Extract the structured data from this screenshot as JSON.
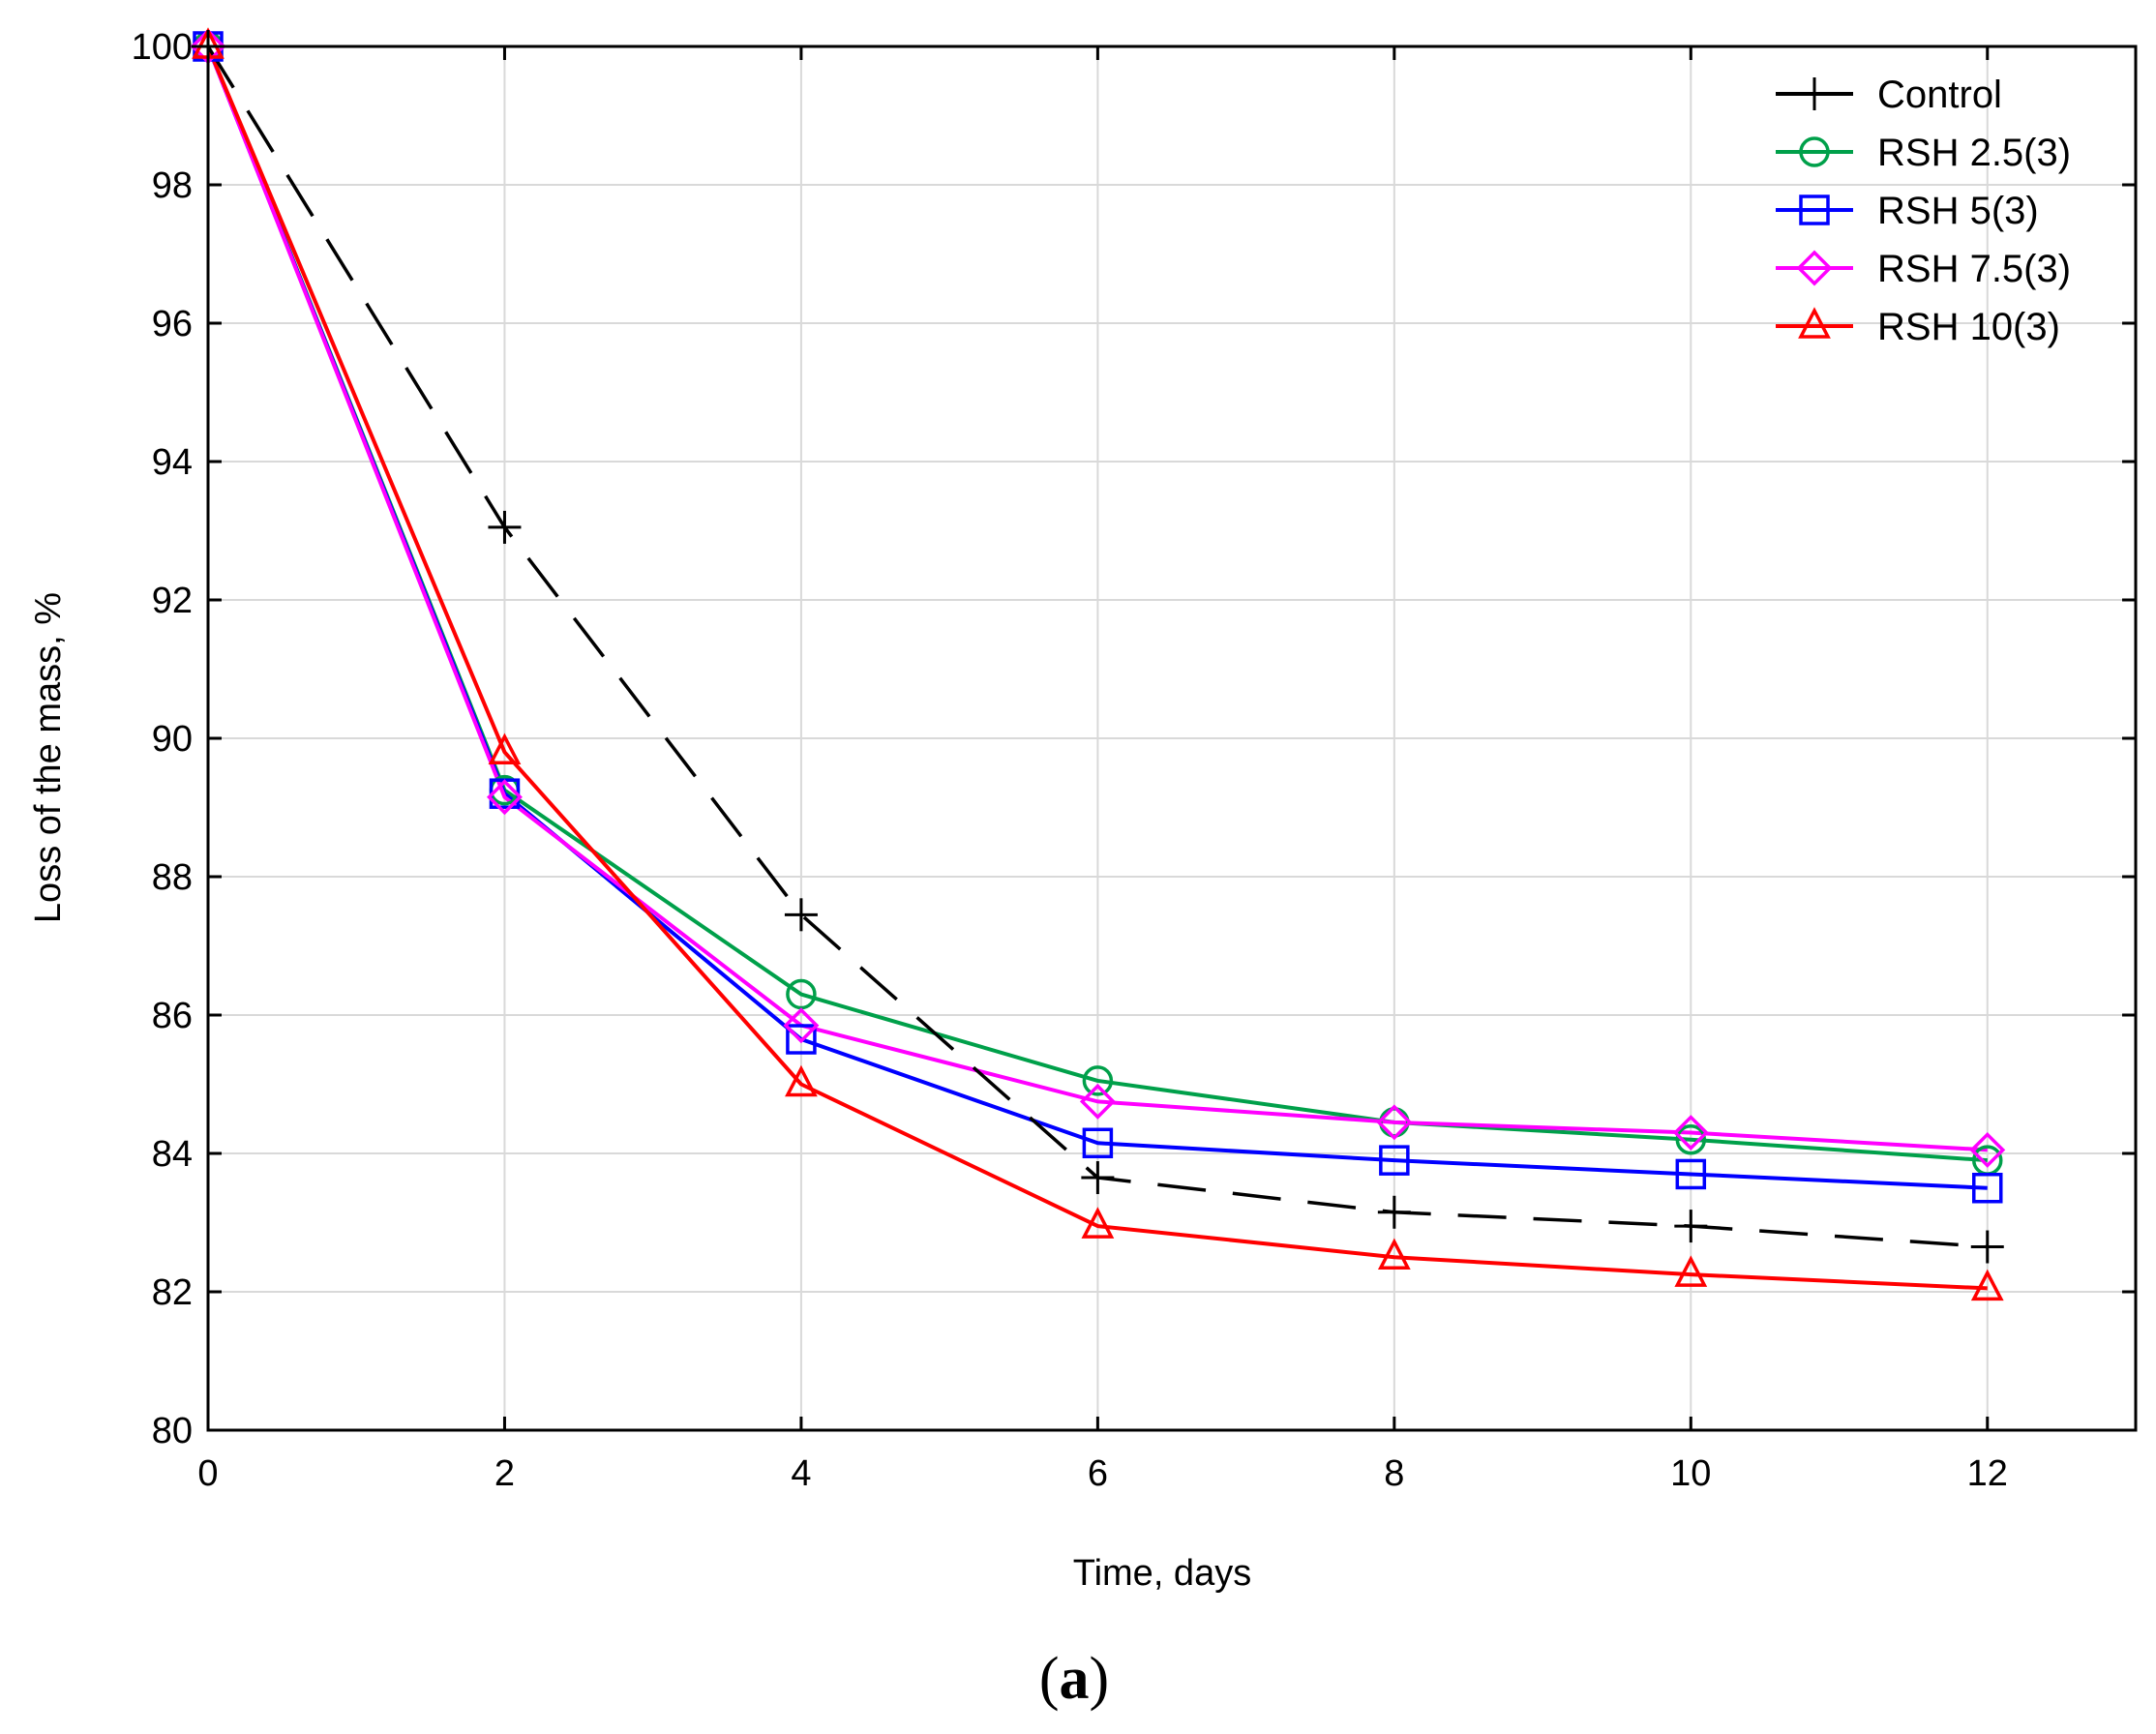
{
  "chart_data": {
    "type": "line",
    "title": "",
    "xlabel": "Time, days",
    "ylabel": "Loss of the mass, %",
    "panel_label": "(a)",
    "panel_label_letter": "a",
    "xlim": [
      0,
      13
    ],
    "ylim": [
      80,
      100
    ],
    "xticks": [
      0,
      2,
      4,
      6,
      8,
      10,
      12
    ],
    "yticks": [
      80,
      82,
      84,
      86,
      88,
      90,
      92,
      94,
      96,
      98,
      100
    ],
    "grid": true,
    "legend_position": "top-right",
    "x": [
      0,
      2,
      4,
      6,
      8,
      10,
      12
    ],
    "series": [
      {
        "name": "Control",
        "color": "#000000",
        "marker": "plus",
        "dashed": true,
        "values": [
          100,
          93.05,
          87.45,
          83.65,
          83.15,
          82.95,
          82.65
        ]
      },
      {
        "name": "RSH 2.5(3)",
        "color": "#00A04A",
        "marker": "circle",
        "dashed": false,
        "values": [
          100,
          89.25,
          86.3,
          85.05,
          84.45,
          84.2,
          83.9
        ]
      },
      {
        "name": "RSH 5(3)",
        "color": "#0000FF",
        "marker": "square",
        "dashed": false,
        "values": [
          100,
          89.2,
          85.65,
          84.15,
          83.9,
          83.7,
          83.5
        ]
      },
      {
        "name": "RSH 7.5(3)",
        "color": "#FF00FF",
        "marker": "diamond",
        "dashed": false,
        "values": [
          100,
          89.15,
          85.85,
          84.75,
          84.45,
          84.3,
          84.05
        ]
      },
      {
        "name": "RSH 10(3)",
        "color": "#FF0000",
        "marker": "triangle",
        "dashed": false,
        "values": [
          100,
          89.8,
          85.0,
          82.95,
          82.5,
          82.25,
          82.05
        ]
      }
    ]
  }
}
